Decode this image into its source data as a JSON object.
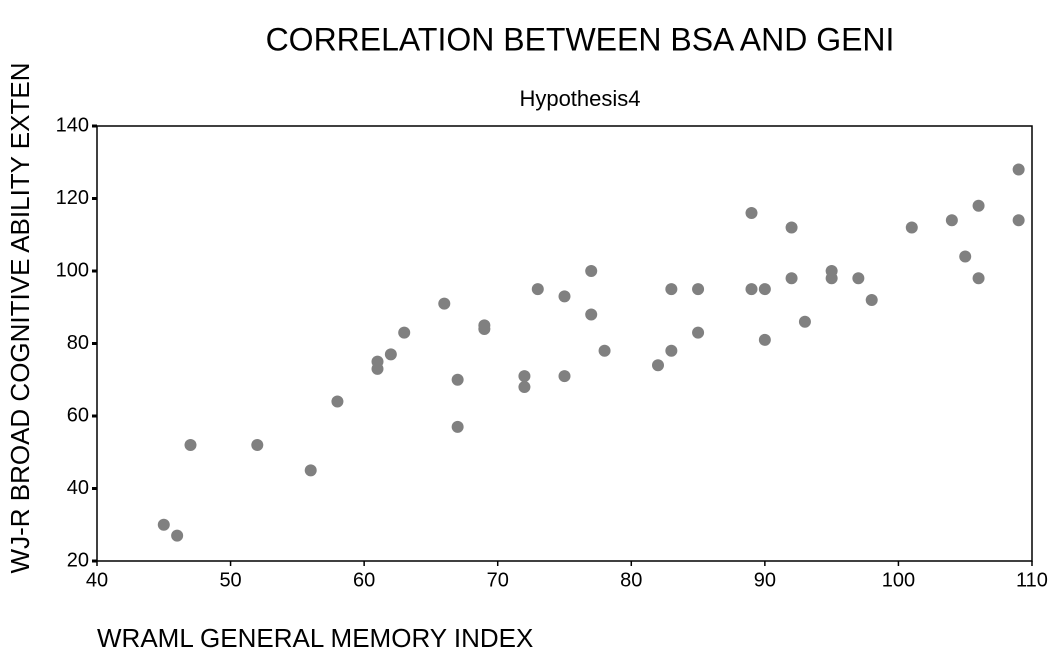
{
  "chart_data": {
    "type": "scatter",
    "title": "CORRELATION BETWEEN BSA AND GENI",
    "subtitle": "Hypothesis4",
    "x_label": "WRAML GENERAL MEMORY INDEX",
    "y_label": "WJ-R BROAD COGNITIVE ABILITY EXTEN",
    "color": "#808080",
    "x": [
      45,
      46,
      47,
      52,
      56,
      58,
      61,
      61,
      62,
      63,
      66,
      67,
      67,
      69,
      69,
      72,
      72,
      73,
      75,
      75,
      77,
      77,
      78,
      82,
      83,
      83,
      85,
      85,
      89,
      89,
      90,
      90,
      92,
      92,
      93,
      95,
      95,
      97,
      98,
      101,
      104,
      105,
      106,
      106,
      109,
      109
    ],
    "values": [
      30,
      27,
      52,
      52,
      45,
      64,
      75,
      73,
      77,
      83,
      91,
      70,
      57,
      85,
      84,
      71,
      68,
      95,
      93,
      71,
      100,
      88,
      78,
      74,
      95,
      78,
      95,
      83,
      116,
      95,
      95,
      81,
      112,
      98,
      86,
      100,
      98,
      98,
      92,
      112,
      114,
      104,
      118,
      98,
      128,
      114
    ],
    "xlim": [
      40,
      110
    ],
    "xticks": [
      40,
      50,
      60,
      70,
      80,
      90,
      100,
      110
    ],
    "ylim": [
      20,
      140
    ],
    "yticks": [
      20,
      40,
      60,
      80,
      100,
      120,
      140
    ]
  }
}
